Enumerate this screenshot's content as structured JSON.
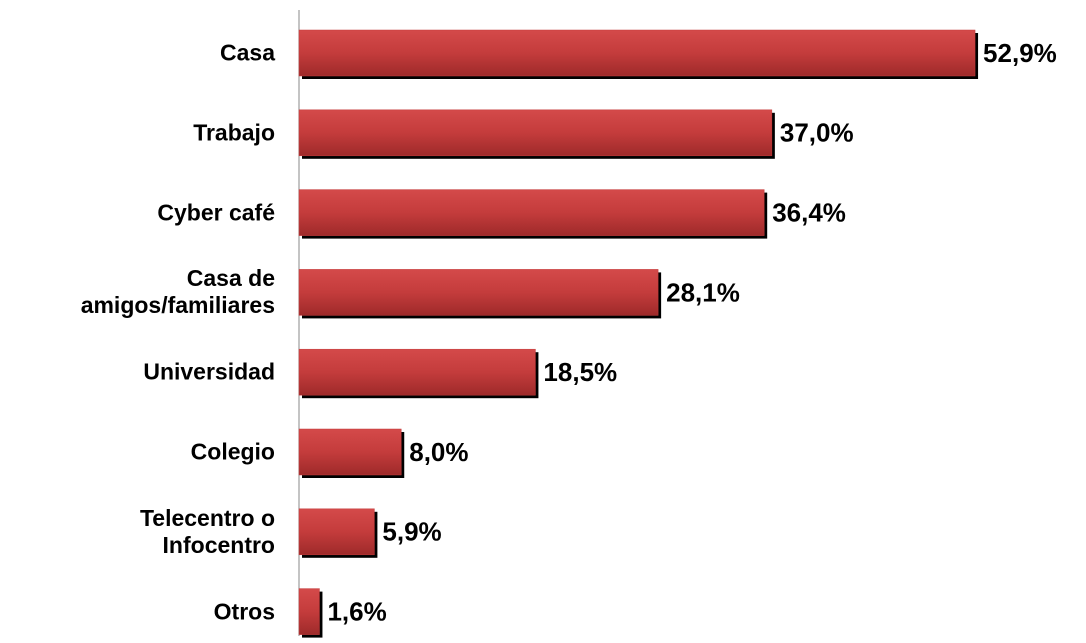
{
  "chart_data": {
    "type": "bar",
    "orientation": "horizontal",
    "categories": [
      "Casa",
      "Trabajo",
      "Cyber café",
      "Casa de\namigos/familiares",
      "Universidad",
      "Colegio",
      "Telecentro  o\nInfocentro",
      "Otros"
    ],
    "values": [
      52.9,
      37.0,
      36.4,
      28.1,
      18.5,
      8.0,
      5.9,
      1.6
    ],
    "value_labels": [
      "52,9%",
      "37,0%",
      "36,4%",
      "28,1%",
      "18,5%",
      "8,0%",
      "5,9%",
      "1,6%"
    ],
    "color": "#c43c3c"
  }
}
